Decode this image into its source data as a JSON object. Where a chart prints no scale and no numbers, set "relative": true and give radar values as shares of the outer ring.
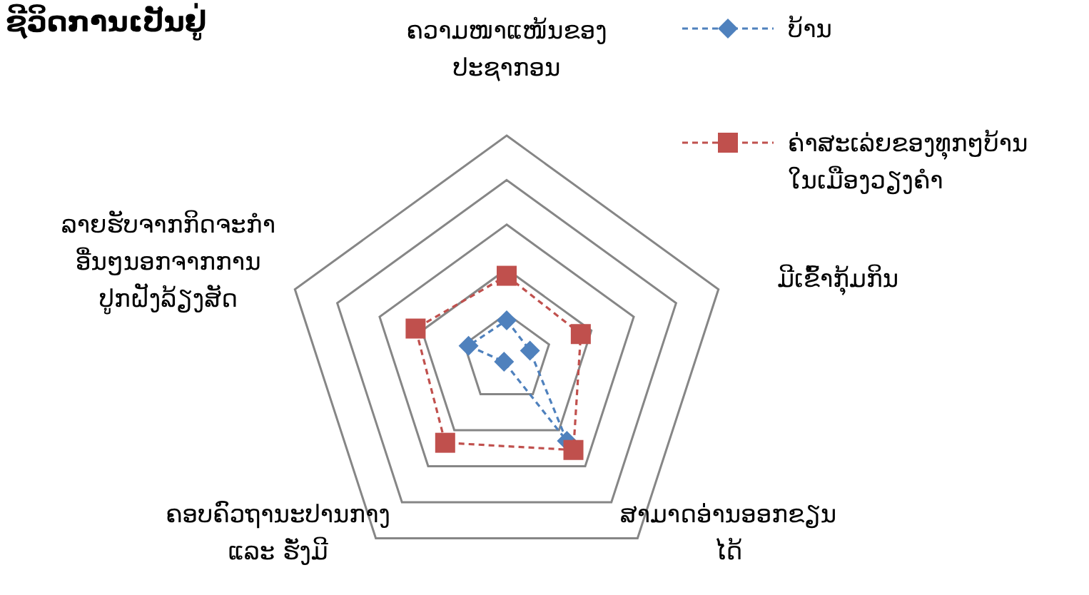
{
  "chart_data": {
    "type": "radar",
    "title": "ຊີວິດການເປັນຢູ່",
    "relative": true,
    "grid": true,
    "legend": "top right",
    "line_style": "dashed",
    "categories": [
      "ຄວາມໜາແໜ້ນຂອງ\nປະຊາກອນ",
      "ມີເຂົ້າກຸ້ມກິນ",
      "ສາມາດອ່ານອອກຂຽນ\nໄດ້",
      "ຄອບຄົວຖານະປານກາງ\nແລະ ຮັ່ງມີ",
      "ລາຍຮັບຈາກກິດຈະກຳ\nອື່ນໆນອກຈາກການ\nປູກຝັງລ້ຽງສັດ"
    ],
    "series": [
      {
        "name": "ບ້ານ",
        "color": "#4f81bd",
        "marker": "diamond",
        "values": [
          0.17,
          0.11,
          0.46,
          0.02,
          0.18
        ]
      },
      {
        "name": "ຄ່າສະເລ່ຍຂອງທຸກໆບ້ານ\nໃນເມືອງວຽງຄຳ",
        "color": "#c0504d",
        "marker": "square",
        "values": [
          0.37,
          0.35,
          0.51,
          0.47,
          0.43
        ]
      }
    ]
  }
}
